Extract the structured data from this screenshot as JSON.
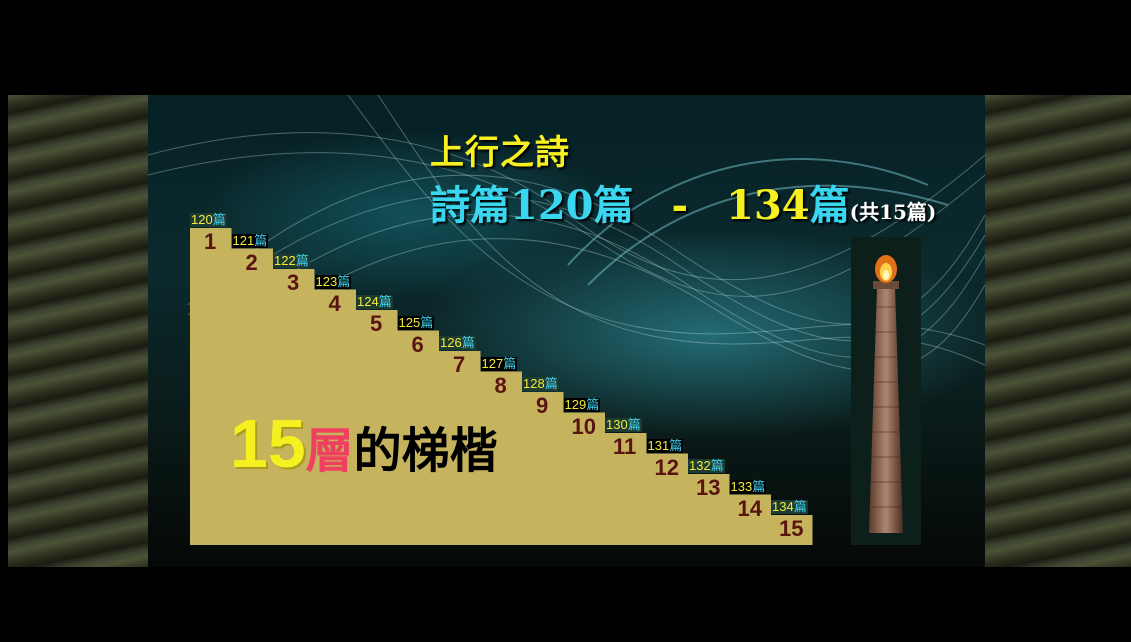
{
  "title_line1": "上行之詩",
  "title_line2": {
    "part1": "詩篇120篇",
    "dash": "-",
    "part2_num": "134",
    "part2_unit": "篇",
    "note": "(共15篇)"
  },
  "caption": {
    "num": "15",
    "red": "層",
    "black": "的梯楷"
  },
  "steps": [
    {
      "no": "1",
      "psalm": "120",
      "unit": "篇"
    },
    {
      "no": "2",
      "psalm": "121",
      "unit": "篇"
    },
    {
      "no": "3",
      "psalm": "122",
      "unit": "篇"
    },
    {
      "no": "4",
      "psalm": "123",
      "unit": "篇"
    },
    {
      "no": "5",
      "psalm": "124",
      "unit": "篇"
    },
    {
      "no": "6",
      "psalm": "125",
      "unit": "篇"
    },
    {
      "no": "7",
      "psalm": "126",
      "unit": "篇"
    },
    {
      "no": "8",
      "psalm": "127",
      "unit": "篇"
    },
    {
      "no": "9",
      "psalm": "128",
      "unit": "篇"
    },
    {
      "no": "10",
      "psalm": "129",
      "unit": "篇"
    },
    {
      "no": "11",
      "psalm": "130",
      "unit": "篇"
    },
    {
      "no": "12",
      "psalm": "131",
      "unit": "篇"
    },
    {
      "no": "13",
      "psalm": "132",
      "unit": "篇"
    },
    {
      "no": "14",
      "psalm": "133",
      "unit": "篇"
    },
    {
      "no": "15",
      "psalm": "134",
      "unit": "篇"
    }
  ],
  "colors": {
    "stair": "#c5b35e",
    "yellow": "#f6f021",
    "cyan": "#39d6f0",
    "step_number": "#5a1410"
  },
  "icons": [
    "flame-icon",
    "stone-pillar"
  ]
}
